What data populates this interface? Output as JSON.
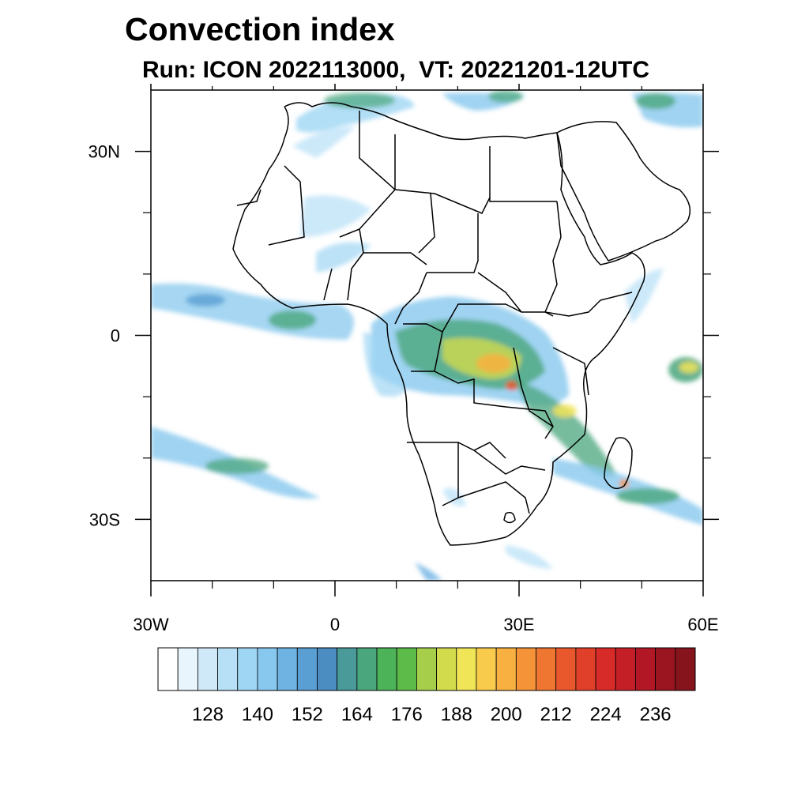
{
  "title": "Convection index",
  "subtitle": "Run: ICON 2022113000,  VT: 20221201-12UTC",
  "map": {
    "lon_range": [
      -30,
      60
    ],
    "lat_range": [
      -40,
      40
    ],
    "lon_ticks": [
      {
        "value": -30,
        "label": "30W"
      },
      {
        "value": 0,
        "label": "0"
      },
      {
        "value": 30,
        "label": "30E"
      },
      {
        "value": 60,
        "label": "60E"
      }
    ],
    "lat_ticks": [
      {
        "value": 30,
        "label": "30N"
      },
      {
        "value": 0,
        "label": "0"
      },
      {
        "value": -30,
        "label": "30S"
      }
    ],
    "minor_lon_ticks": [
      -20,
      -10,
      10,
      20,
      40,
      50
    ],
    "minor_lat_ticks": [
      20,
      10,
      -10,
      -20
    ]
  },
  "colorbar": {
    "colors": [
      "#ffffff",
      "#e8f5fc",
      "#cfe9f8",
      "#b7e0f6",
      "#9fd6f4",
      "#88c8ee",
      "#6fb3e3",
      "#5a9fd3",
      "#4b8cc1",
      "#4a9a9a",
      "#4aa67c",
      "#4db359",
      "#5dbb4a",
      "#a6ce4a",
      "#d2db4c",
      "#f0e457",
      "#f9cb4c",
      "#f8b040",
      "#f49338",
      "#ef7631",
      "#e9582c",
      "#e03f29",
      "#d62b28",
      "#c41f26",
      "#b11724",
      "#9b1520",
      "#85141c"
    ],
    "labels": [
      128,
      140,
      152,
      164,
      176,
      188,
      200,
      212,
      224,
      236
    ]
  }
}
